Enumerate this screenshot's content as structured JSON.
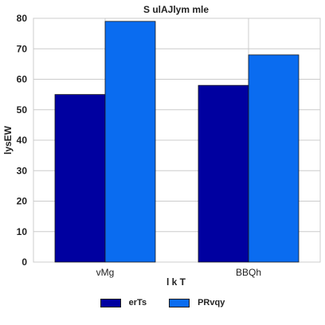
{
  "chart_data": {
    "type": "bar",
    "title": "S ulAJlym mle",
    "xlabel": "l k T",
    "ylabel": "lysEW",
    "categories": [
      "vMg",
      "BBQh"
    ],
    "ylim": [
      0,
      80
    ],
    "yticks": [
      0,
      10,
      20,
      30,
      40,
      50,
      60,
      70,
      80
    ],
    "grid": true,
    "legend_position": "bottom",
    "series": [
      {
        "name": "erTs",
        "values": [
          55,
          58
        ],
        "color": "#0000a0"
      },
      {
        "name": "PRvqy",
        "values": [
          79,
          68
        ],
        "color": "#0a6cf0"
      }
    ]
  }
}
